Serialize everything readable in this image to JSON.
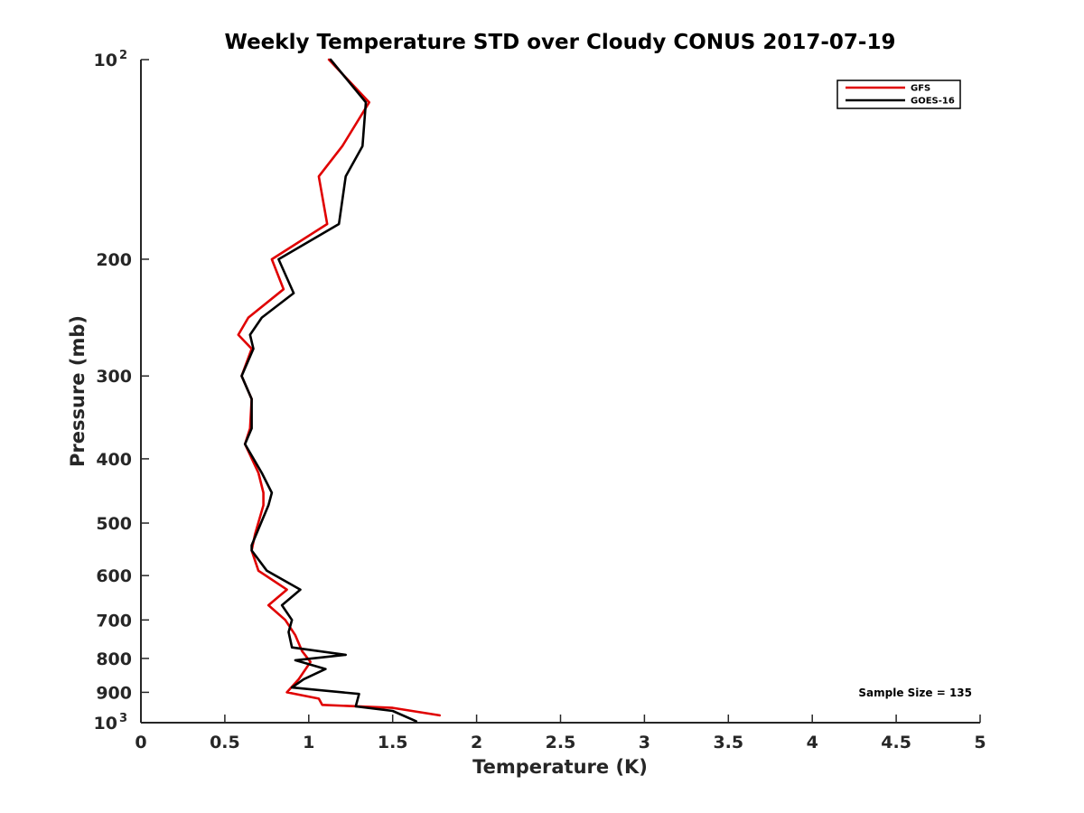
{
  "chart_data": {
    "type": "line",
    "title": "Weekly Temperature STD over Cloudy CONUS 2017-07-19",
    "xlabel": "Temperature (K)",
    "ylabel": "Pressure (mb)",
    "xlim": [
      0,
      5
    ],
    "ylim": [
      100,
      1000
    ],
    "y_scale": "log",
    "y_reversed": true,
    "x_ticks": [
      {
        "value": 0,
        "label": "0"
      },
      {
        "value": 0.5,
        "label": "0.5"
      },
      {
        "value": 1,
        "label": "1"
      },
      {
        "value": 1.5,
        "label": "1.5"
      },
      {
        "value": 2,
        "label": "2"
      },
      {
        "value": 2.5,
        "label": "2.5"
      },
      {
        "value": 3,
        "label": "3"
      },
      {
        "value": 3.5,
        "label": "3.5"
      },
      {
        "value": 4,
        "label": "4"
      },
      {
        "value": 4.5,
        "label": "4.5"
      },
      {
        "value": 5,
        "label": "5"
      }
    ],
    "y_ticks": [
      {
        "value": 100,
        "base": "10",
        "exp": "2"
      },
      {
        "value": 200,
        "label": "200"
      },
      {
        "value": 300,
        "label": "300"
      },
      {
        "value": 400,
        "label": "400"
      },
      {
        "value": 500,
        "label": "500"
      },
      {
        "value": 600,
        "label": "600"
      },
      {
        "value": 700,
        "label": "700"
      },
      {
        "value": 800,
        "label": "800"
      },
      {
        "value": 900,
        "label": "900"
      },
      {
        "value": 1000,
        "base": "10",
        "exp": "3"
      }
    ],
    "grid": false,
    "legend_position": "top-right",
    "annotation": "Sample Size = 135",
    "series": [
      {
        "name": "GFS",
        "color": "#e00000",
        "points": [
          [
            1.12,
            100
          ],
          [
            1.36,
            116
          ],
          [
            1.2,
            135
          ],
          [
            1.06,
            150
          ],
          [
            1.11,
            177
          ],
          [
            0.78,
            200
          ],
          [
            0.85,
            222
          ],
          [
            0.64,
            245
          ],
          [
            0.58,
            260
          ],
          [
            0.66,
            273
          ],
          [
            0.6,
            300
          ],
          [
            0.66,
            325
          ],
          [
            0.65,
            360
          ],
          [
            0.62,
            380
          ],
          [
            0.7,
            420
          ],
          [
            0.73,
            450
          ],
          [
            0.73,
            470
          ],
          [
            0.68,
            520
          ],
          [
            0.66,
            550
          ],
          [
            0.7,
            590
          ],
          [
            0.87,
            630
          ],
          [
            0.76,
            665
          ],
          [
            0.86,
            700
          ],
          [
            0.92,
            738
          ],
          [
            0.96,
            780
          ],
          [
            1.01,
            810
          ],
          [
            0.94,
            860
          ],
          [
            0.87,
            900
          ],
          [
            1.06,
            920
          ],
          [
            1.08,
            940
          ],
          [
            1.5,
            950
          ],
          [
            1.78,
            975
          ]
        ]
      },
      {
        "name": "GOES-16",
        "color": "#000000",
        "points": [
          [
            1.13,
            100
          ],
          [
            1.34,
            116
          ],
          [
            1.32,
            135
          ],
          [
            1.22,
            150
          ],
          [
            1.18,
            177
          ],
          [
            0.82,
            200
          ],
          [
            0.91,
            225
          ],
          [
            0.72,
            245
          ],
          [
            0.65,
            260
          ],
          [
            0.67,
            273
          ],
          [
            0.6,
            300
          ],
          [
            0.66,
            325
          ],
          [
            0.66,
            360
          ],
          [
            0.62,
            380
          ],
          [
            0.72,
            420
          ],
          [
            0.78,
            450
          ],
          [
            0.76,
            470
          ],
          [
            0.66,
            540
          ],
          [
            0.66,
            550
          ],
          [
            0.75,
            590
          ],
          [
            0.95,
            630
          ],
          [
            0.84,
            665
          ],
          [
            0.9,
            700
          ],
          [
            0.88,
            730
          ],
          [
            0.9,
            770
          ],
          [
            1.22,
            790
          ],
          [
            0.92,
            805
          ],
          [
            1.1,
            830
          ],
          [
            0.97,
            860
          ],
          [
            0.9,
            885
          ],
          [
            1.3,
            905
          ],
          [
            1.28,
            945
          ],
          [
            1.5,
            960
          ],
          [
            1.64,
            995
          ]
        ]
      }
    ]
  }
}
